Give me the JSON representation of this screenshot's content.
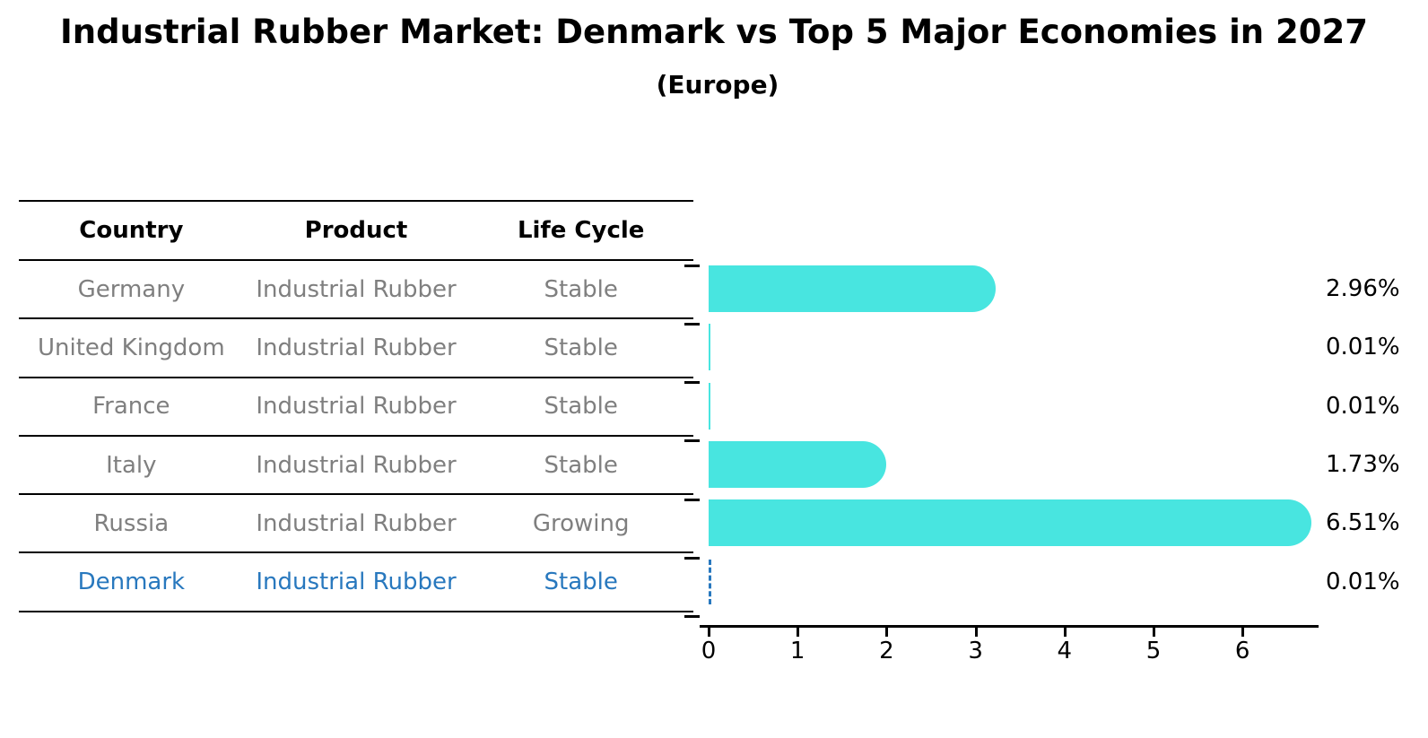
{
  "title": "Industrial Rubber Market: Denmark vs Top 5 Major Economies in 2027",
  "subtitle": "(Europe)",
  "colors": {
    "bar": "#48e5e0",
    "highlight_blue": "#2878be",
    "table_text": "#7f7f7f",
    "axis": "#000000"
  },
  "table": {
    "headers": [
      "Country",
      "Product",
      "Life Cycle"
    ],
    "rows": [
      {
        "country": "Germany",
        "product": "Industrial Rubber",
        "life_cycle": "Stable",
        "highlighted": false
      },
      {
        "country": "United Kingdom",
        "product": "Industrial Rubber",
        "life_cycle": "Stable",
        "highlighted": false
      },
      {
        "country": "France",
        "product": "Industrial Rubber",
        "life_cycle": "Stable",
        "highlighted": false
      },
      {
        "country": "Italy",
        "product": "Industrial Rubber",
        "life_cycle": "Stable",
        "highlighted": false
      },
      {
        "country": "Russia",
        "product": "Industrial Rubber",
        "life_cycle": "Growing",
        "highlighted": false
      },
      {
        "country": "Denmark",
        "product": "Industrial Rubber",
        "life_cycle": "Stable",
        "highlighted": true
      }
    ]
  },
  "chart_data": {
    "type": "bar",
    "orientation": "horizontal",
    "title": "Industrial Rubber Market: Denmark vs Top 5 Major Economies in 2027",
    "subtitle": "(Europe)",
    "categories": [
      "Germany",
      "United Kingdom",
      "France",
      "Italy",
      "Russia",
      "Denmark"
    ],
    "values": [
      2.96,
      0.01,
      0.01,
      1.73,
      6.51,
      0.01
    ],
    "value_labels": [
      "2.96%",
      "0.01%",
      "0.01%",
      "1.73%",
      "6.51%",
      "0.01%"
    ],
    "xticks": [
      "0",
      "1",
      "2",
      "3",
      "4",
      "5",
      "6"
    ],
    "xlim": [
      0,
      6.85
    ],
    "grid": false,
    "legend": "none",
    "bar_color": "#48e5e0",
    "highlight": {
      "category": "Denmark",
      "style": "dashed-outline",
      "color": "#2878be"
    }
  }
}
